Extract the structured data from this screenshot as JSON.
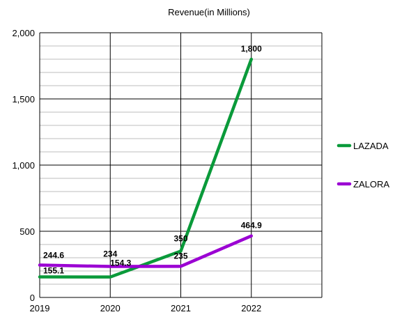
{
  "chart_data": {
    "type": "line",
    "title": "Revenue(in Millions)",
    "xlabel": "",
    "ylabel": "",
    "categories": [
      "2019",
      "2020",
      "2021",
      "2022"
    ],
    "ylim": [
      0,
      2000
    ],
    "y_ticks": [
      0,
      500,
      1000,
      1500,
      2000
    ],
    "y_tick_labels": [
      "0",
      "500",
      "1,000",
      "1,500",
      "2,000"
    ],
    "series": [
      {
        "name": "LAZADA",
        "color": "#0a9a3a",
        "values": [
          155.1,
          154.3,
          350,
          1800
        ],
        "labels": [
          "155.1",
          "154.3",
          "350",
          "1,800"
        ]
      },
      {
        "name": "ZALORA",
        "color": "#9b00d3",
        "values": [
          244.6,
          234,
          235,
          464.9
        ],
        "labels": [
          "244.6",
          "234",
          "235",
          "464.9"
        ]
      }
    ],
    "grid": true,
    "legend": "right"
  }
}
